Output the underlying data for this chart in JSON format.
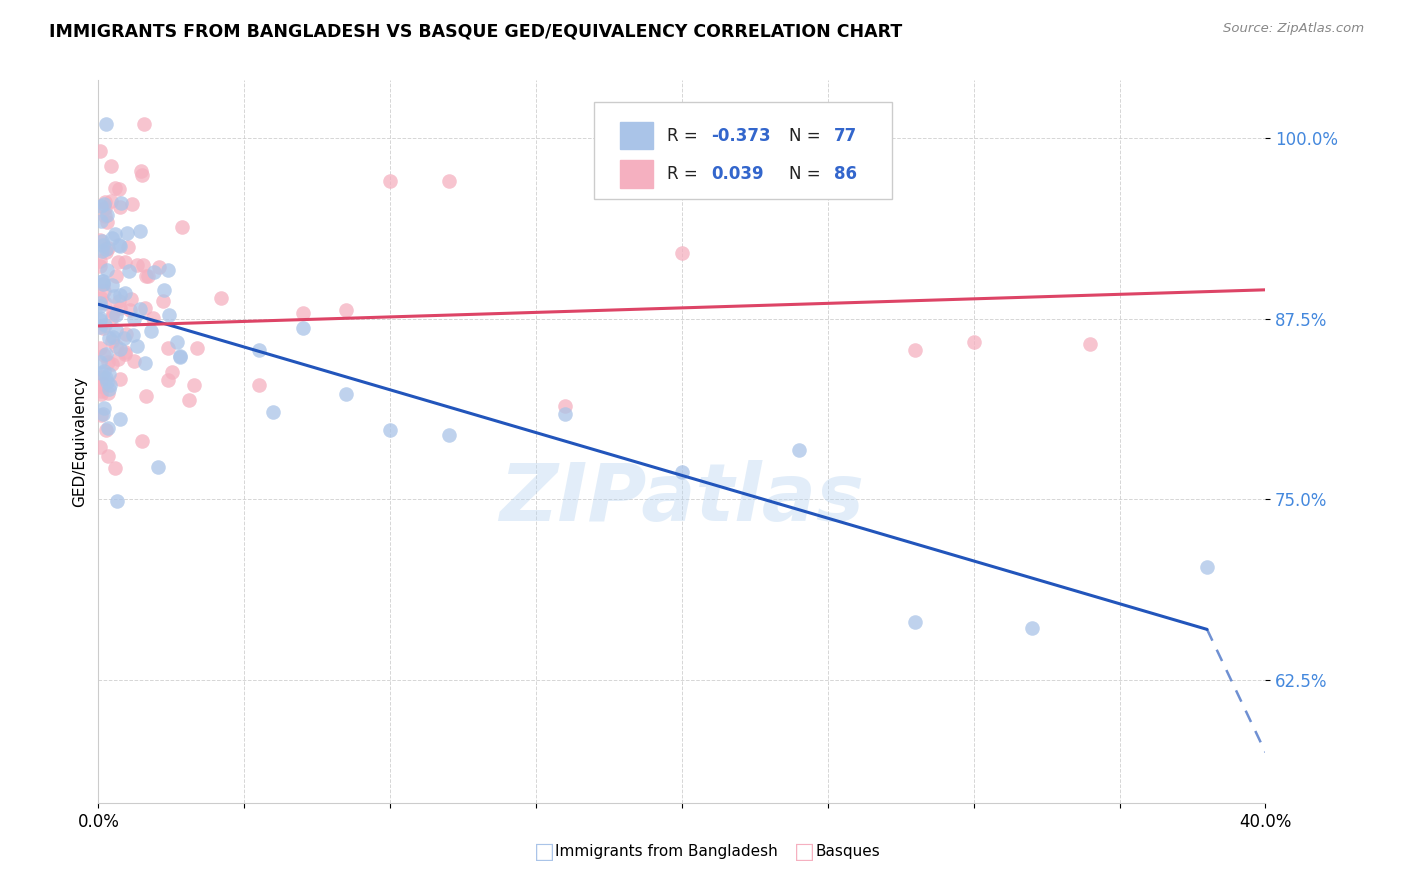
{
  "title": "IMMIGRANTS FROM BANGLADESH VS BASQUE GED/EQUIVALENCY CORRELATION CHART",
  "source": "Source: ZipAtlas.com",
  "ylabel": "GED/Equivalency",
  "yticks": [
    62.5,
    75.0,
    87.5,
    100.0
  ],
  "ytick_labels": [
    "62.5%",
    "75.0%",
    "87.5%",
    "100.0%"
  ],
  "xmin": 0.0,
  "xmax": 40.0,
  "ymin": 54.0,
  "ymax": 104.0,
  "blue_color": "#aac4e8",
  "pink_color": "#f5b0c0",
  "blue_line_color": "#2255bb",
  "pink_line_color": "#dd4466",
  "legend_label_blue": "Immigrants from Bangladesh",
  "legend_label_pink": "Basques",
  "watermark": "ZIPatlas",
  "blue_line_x0": 0.0,
  "blue_line_y0": 88.5,
  "blue_line_x1": 38.0,
  "blue_line_y1": 66.0,
  "blue_dash_x0": 38.0,
  "blue_dash_y0": 66.0,
  "blue_dash_x1": 40.0,
  "blue_dash_y1": 57.5,
  "pink_line_x0": 0.0,
  "pink_line_y0": 87.0,
  "pink_line_x1": 40.0,
  "pink_line_y1": 89.5
}
